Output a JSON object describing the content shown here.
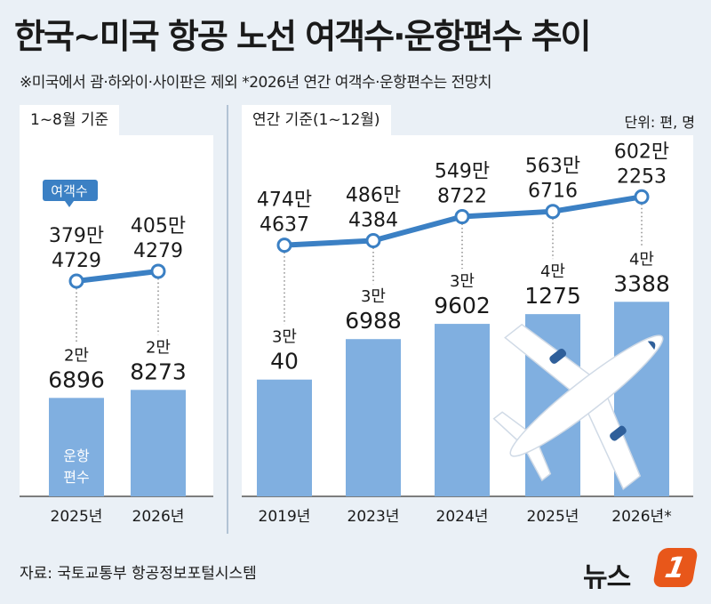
{
  "title": "한국~미국 항공 노선 여객수·운항편수 추이",
  "note": "※미국에서 괌·하와이·사이판은 제외   *2026년 연간 여객수·운항편수는 전망치",
  "unit": "단위: 편, 명",
  "source": "자료: 국토교통부 항공정보포털시스템",
  "logo": {
    "text": "뉴스",
    "badge": "1"
  },
  "colors": {
    "bar": "#80afe0",
    "line": "#3b80c4",
    "background": "#eaf0f6"
  },
  "chart_data": [
    {
      "type": "bar+line",
      "panel_label": "1~8월 기준",
      "categories": [
        "2025년",
        "2026년"
      ],
      "bar_series": {
        "label": "운항편수",
        "values": [
          26896,
          28273
        ],
        "labels": [
          [
            "2만",
            "6896"
          ],
          [
            "2만",
            "8273"
          ]
        ]
      },
      "line_series": {
        "label": "여객수",
        "values": [
          3794729,
          4054279
        ],
        "labels": [
          [
            "379만",
            "4729"
          ],
          [
            "405만",
            "4279"
          ]
        ]
      }
    },
    {
      "type": "bar+line",
      "panel_label": "연간 기준(1~12월)",
      "categories": [
        "2019년",
        "2023년",
        "2024년",
        "2025년",
        "2026년*"
      ],
      "bar_series": {
        "values": [
          30040,
          36988,
          39602,
          41275,
          43388
        ],
        "labels": [
          [
            "3만",
            "40"
          ],
          [
            "3만",
            "6988"
          ],
          [
            "3만",
            "9602"
          ],
          [
            "4만",
            "1275"
          ],
          [
            "4만",
            "3388"
          ]
        ]
      },
      "line_series": {
        "values": [
          4744637,
          4864384,
          5498722,
          5636716,
          6022253
        ],
        "labels": [
          [
            "474만",
            "4637"
          ],
          [
            "486만",
            "4384"
          ],
          [
            "549만",
            "8722"
          ],
          [
            "563만",
            "6716"
          ],
          [
            "602만",
            "2253"
          ]
        ]
      }
    }
  ]
}
